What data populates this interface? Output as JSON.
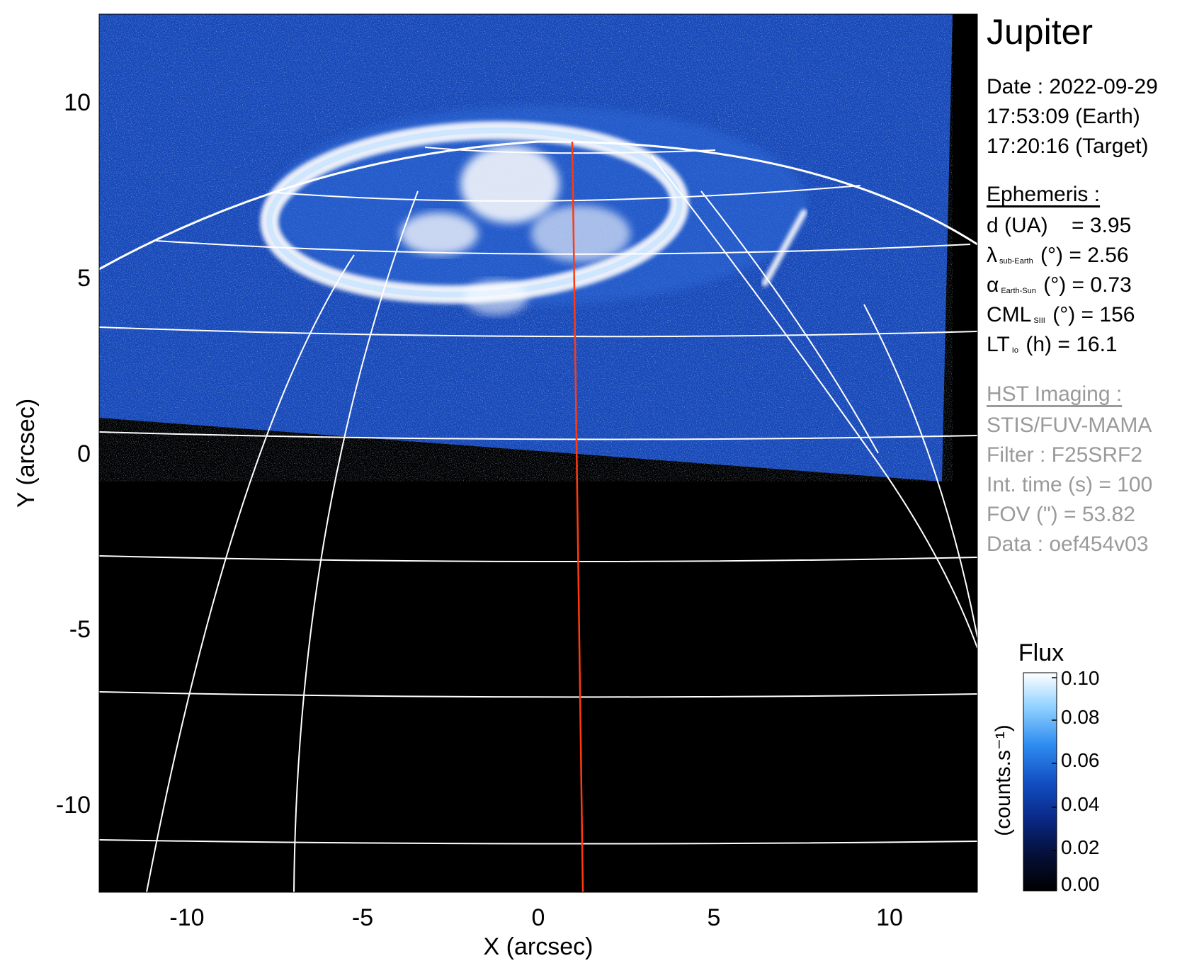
{
  "target": "Jupiter",
  "observation": {
    "date": "Date : 2022-09-29",
    "earth_time": "17:53:09 (Earth)",
    "target_time": "17:20:16 (Target)"
  },
  "ephemeris": {
    "header": "Ephemeris :",
    "d": {
      "symbol": "d (UA)",
      "value": "= 3.95"
    },
    "lat": {
      "symbol": "λ",
      "sub": "sub-Earth",
      "unit": "(°)",
      "value": "= 2.56"
    },
    "phase": {
      "symbol": "α",
      "sub": "Earth-Sun",
      "unit": "(°)",
      "value": "= 0.73"
    },
    "cml": {
      "symbol": "CML",
      "sub": "SIII",
      "unit": "(°)",
      "value": "= 156"
    },
    "lt": {
      "symbol": "LT",
      "sub": "Io",
      "unit": "(h)",
      "value": "= 16.1"
    }
  },
  "instrument": {
    "header": "HST Imaging :",
    "camera": "STIS/FUV-MAMA",
    "filter": "Filter : F25SRF2",
    "int_time": "Int. time (s) = 100",
    "fov": "FOV (\") = 53.82",
    "data": "Data : oef454v03"
  },
  "axes": {
    "xlabel": "X (arcsec)",
    "ylabel": "Y (arcsec)",
    "xticks": [
      -10,
      -5,
      0,
      5,
      10
    ],
    "yticks": [
      10,
      5,
      0,
      -5,
      -10
    ],
    "xlim": [
      -12.5,
      12.5
    ],
    "ylim": [
      -12.5,
      12.5
    ]
  },
  "colorbar": {
    "title": "Flux",
    "label": "(counts.s⁻¹)",
    "ticks": [
      "0.10",
      "0.08",
      "0.06",
      "0.04",
      "0.02",
      "0.00"
    ],
    "colors": [
      "#000000",
      "#05103a",
      "#0a2a8a",
      "#1250c4",
      "#2f8cf0",
      "#8fd0ff",
      "#ffffff"
    ]
  },
  "colors": {
    "background": "#000000",
    "emission": "#1e4fc0",
    "grid": "#ffffff",
    "meridian": "#ff3a10"
  }
}
